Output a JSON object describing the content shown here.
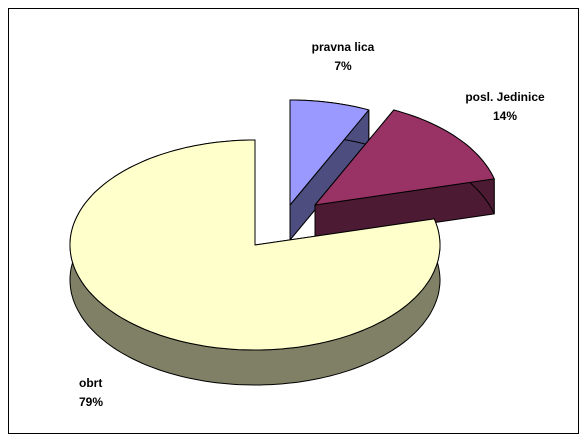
{
  "chart_data": {
    "type": "pie",
    "categories": [
      "pravna lica",
      "posl. Jedinice",
      "obrt"
    ],
    "values": [
      7,
      14,
      79
    ],
    "value_labels": [
      "7%",
      "14%",
      "79%"
    ],
    "colors": [
      "#9999ff",
      "#993366",
      "#ffffcc"
    ],
    "side_colors": [
      "#4d4d80",
      "#4d1a33",
      "#808066"
    ]
  }
}
